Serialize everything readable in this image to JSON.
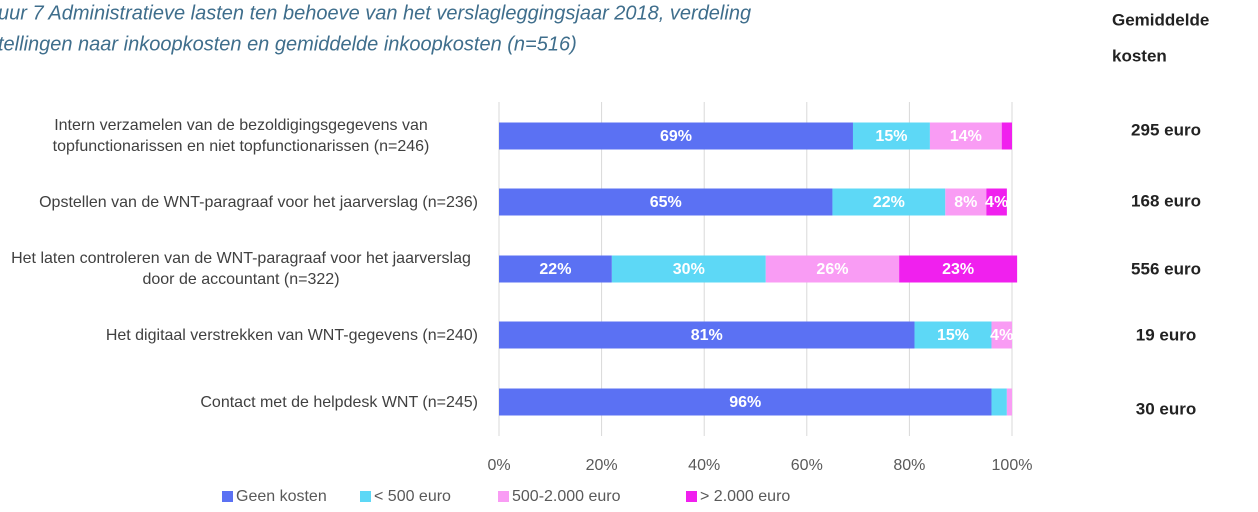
{
  "chart_data": {
    "type": "stacked_barh",
    "title": [
      "uur 7 Administratieve lasten ten behoeve van het verslagleggingsjaar 2018, verdeling",
      "tellingen naar inkoopkosten en gemiddelde inkoopkosten (n=516)"
    ],
    "categories": [
      "Intern verzamelen van de bezoldigingsgegevens van topfunctionarissen en niet topfunctionarissen (n=246)",
      "Opstellen van de WNT-paragraaf voor het jaarverslag (n=236)",
      "Het laten controleren van de WNT-paragraaf voor het jaarverslag door de accountant (n=322)",
      "Het digitaal verstrekken van WNT-gegevens (n=240)",
      "Contact met de helpdesk WNT (n=245)"
    ],
    "series": [
      {
        "name": "Geen kosten",
        "color": "#5b71f3",
        "values": [
          69,
          65,
          22,
          81,
          96
        ],
        "value_labels": [
          "69%",
          "65%",
          "22%",
          "81%",
          "96%"
        ]
      },
      {
        "name": "< 500 euro",
        "color": "#5dd8f6",
        "values": [
          15,
          22,
          30,
          15,
          3
        ],
        "value_labels": [
          "15%",
          "22%",
          "30%",
          "15%",
          null
        ]
      },
      {
        "name": "500-2.000 euro",
        "color": "#f99cf4",
        "values": [
          14,
          8,
          26,
          4,
          1
        ],
        "value_labels": [
          "14%",
          "8%",
          "26%",
          "4%",
          null
        ]
      },
      {
        "name": "> 2.000 euro",
        "color": "#f020ee",
        "values": [
          2,
          4,
          23,
          0,
          0
        ],
        "value_labels": [
          null,
          "4%",
          "23%",
          null,
          null
        ]
      }
    ],
    "xlim": [
      0,
      100
    ],
    "xticks": [
      {
        "value": 0,
        "label": "0%"
      },
      {
        "value": 20,
        "label": "20%"
      },
      {
        "value": 40,
        "label": "40%"
      },
      {
        "value": 60,
        "label": "60%"
      },
      {
        "value": 80,
        "label": "80%"
      },
      {
        "value": 100,
        "label": "100%"
      }
    ],
    "grid": true,
    "side_header": [
      "Gemiddelde",
      "kosten"
    ],
    "side_values": [
      "295 euro",
      "168 euro",
      "556 euro",
      "19 euro",
      "30 euro"
    ]
  }
}
